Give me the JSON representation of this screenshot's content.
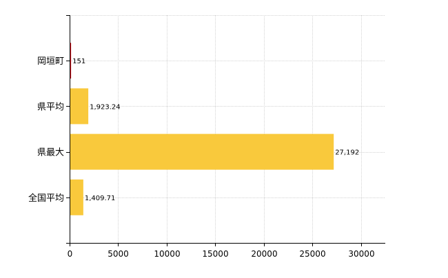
{
  "chart_data": {
    "type": "bar",
    "orientation": "horizontal",
    "categories": [
      "岡垣町",
      "県平均",
      "県最大",
      "全国平均"
    ],
    "values": [
      151,
      1923.24,
      27192,
      1409.71
    ],
    "value_labels": [
      "151",
      "1,923.24",
      "27,192",
      "1,409.71"
    ],
    "highlight_index": 0,
    "xlim": [
      0,
      32500
    ],
    "xticks": [
      0,
      5000,
      10000,
      15000,
      20000,
      25000,
      30000
    ],
    "xtick_labels": [
      "0",
      "5000",
      "10000",
      "15000",
      "20000",
      "25000",
      "30000"
    ],
    "grid": true,
    "title": "",
    "xlabel": "",
    "ylabel": "",
    "colors": {
      "bar": "#F9C93C",
      "highlight_bar": "#D6131C",
      "grid": "#D3D3D3",
      "axis": "#000000",
      "text": "#000000"
    }
  }
}
